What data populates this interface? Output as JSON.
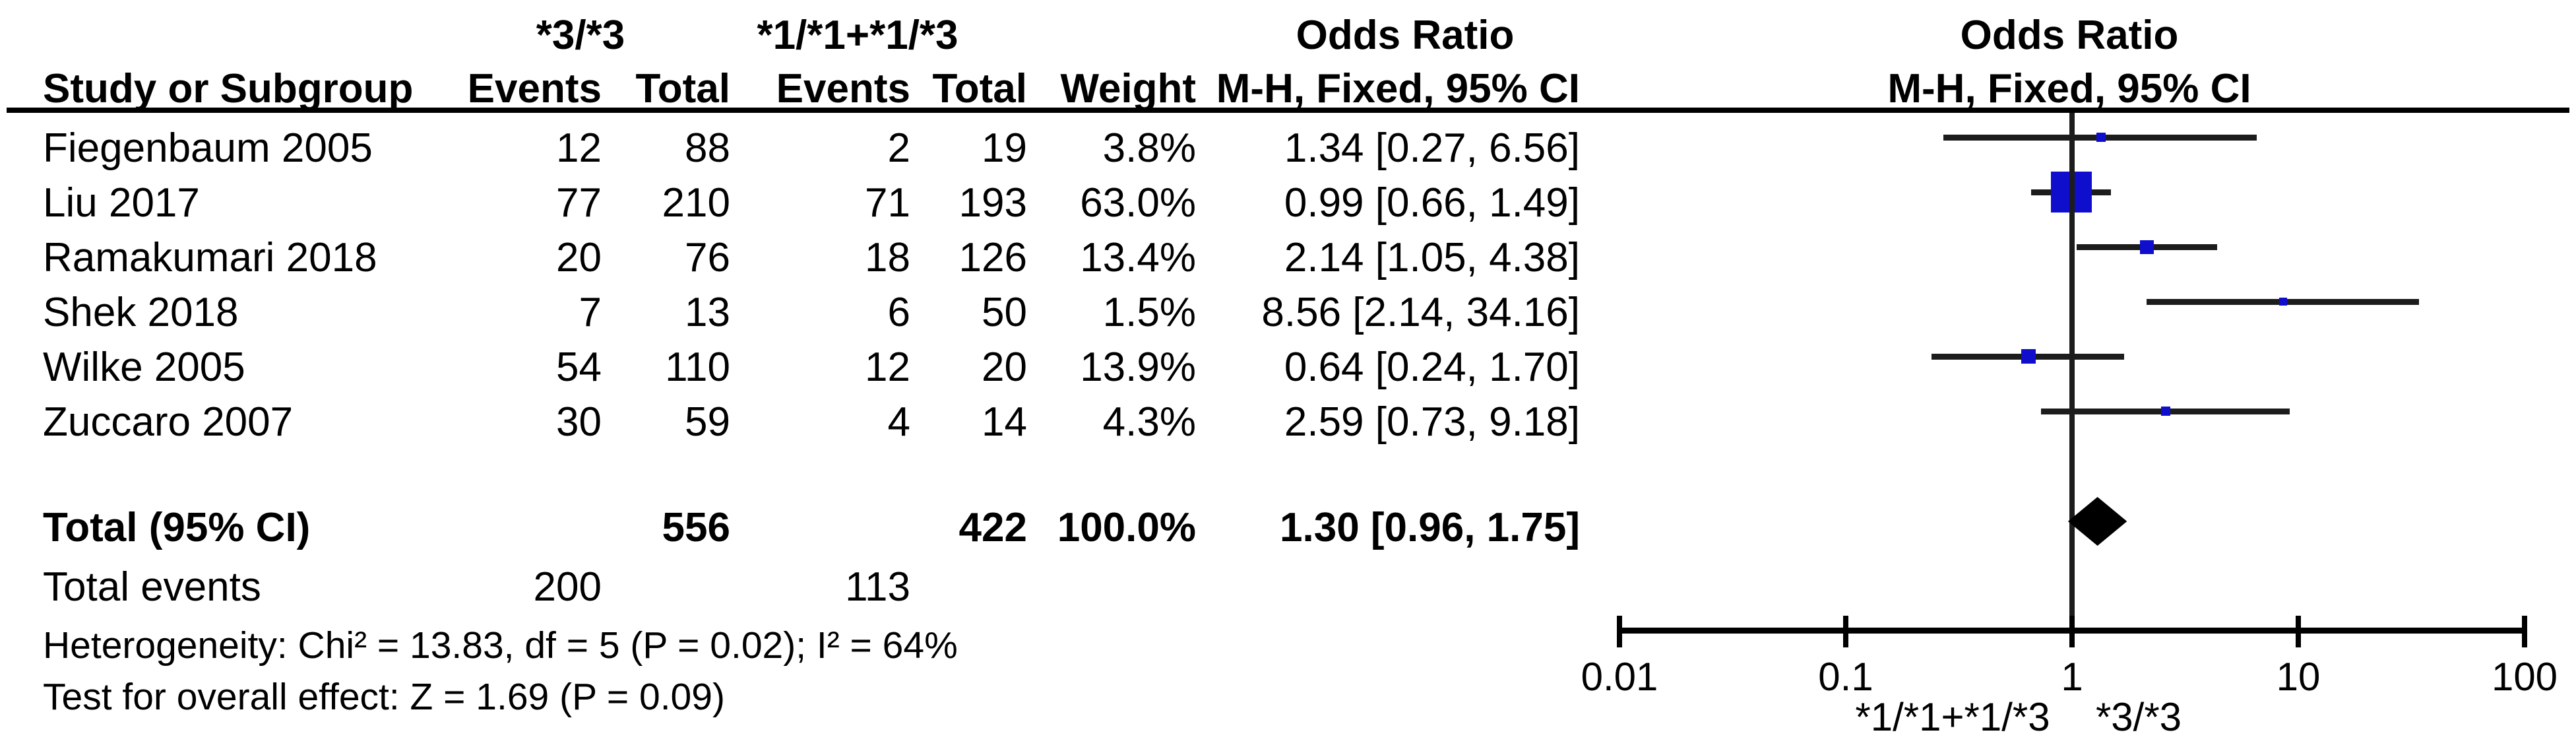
{
  "headers": {
    "group1": "*3/*3",
    "group2": "*1/*1+*1/*3",
    "study": "Study or Subgroup",
    "events": "Events",
    "total": "Total",
    "weight": "Weight",
    "or_line1": "Odds Ratio",
    "or_line2": "M-H, Fixed, 95% CI",
    "plot_line1": "Odds Ratio",
    "plot_line2": "M-H, Fixed, 95% CI"
  },
  "summary": {
    "total_label": "Total (95% CI)",
    "total_exp": "556",
    "total_ctl": "422",
    "weight": "100.0%",
    "or_text": "1.30 [0.96, 1.75]",
    "or": 1.3,
    "ci_low": 0.96,
    "ci_high": 1.75,
    "total_events_label": "Total events",
    "events_exp": "200",
    "events_ctl": "113",
    "heterogeneity": "Heterogeneity: Chi² = 13.83, df = 5 (P = 0.02); I² = 64%",
    "overall_effect": "Test for overall effect: Z = 1.69 (P = 0.09)"
  },
  "chart_data": {
    "type": "scatter",
    "subtype": "forest-plot",
    "effect_measure": "Odds Ratio, M-H, Fixed, 95% CI",
    "x_axis": {
      "scale": "log",
      "range": [
        0.01,
        100
      ],
      "ticks": [
        0.01,
        0.1,
        1,
        10,
        100
      ],
      "tick_labels": [
        "0.01",
        "0.1",
        "1",
        "10",
        "100"
      ]
    },
    "favours_left_label": "*1/*1+*1/*3",
    "favours_right_label": "*3/*3",
    "marker_color": "#0E0ECC",
    "diamond_color": "#000000",
    "studies": [
      {
        "name": "Fiegenbaum 2005",
        "events_exp": "12",
        "total_exp": "88",
        "events_ctl": "2",
        "total_ctl": "19",
        "weight": "3.8%",
        "weight_pct": 3.8,
        "or_text": "1.34 [0.27, 6.56]",
        "or": 1.34,
        "ci_low": 0.27,
        "ci_high": 6.56
      },
      {
        "name": "Liu 2017",
        "events_exp": "77",
        "total_exp": "210",
        "events_ctl": "71",
        "total_ctl": "193",
        "weight": "63.0%",
        "weight_pct": 63.0,
        "or_text": "0.99 [0.66, 1.49]",
        "or": 0.99,
        "ci_low": 0.66,
        "ci_high": 1.49
      },
      {
        "name": "Ramakumari 2018",
        "events_exp": "20",
        "total_exp": "76",
        "events_ctl": "18",
        "total_ctl": "126",
        "weight": "13.4%",
        "weight_pct": 13.4,
        "or_text": "2.14 [1.05, 4.38]",
        "or": 2.14,
        "ci_low": 1.05,
        "ci_high": 4.38
      },
      {
        "name": "Shek 2018",
        "events_exp": "7",
        "total_exp": "13",
        "events_ctl": "6",
        "total_ctl": "50",
        "weight": "1.5%",
        "weight_pct": 1.5,
        "or_text": "8.56 [2.14, 34.16]",
        "or": 8.56,
        "ci_low": 2.14,
        "ci_high": 34.16
      },
      {
        "name": "Wilke 2005",
        "events_exp": "54",
        "total_exp": "110",
        "events_ctl": "12",
        "total_ctl": "20",
        "weight": "13.9%",
        "weight_pct": 13.9,
        "or_text": "0.64 [0.24, 1.70]",
        "or": 0.64,
        "ci_low": 0.24,
        "ci_high": 1.7
      },
      {
        "name": "Zuccaro 2007",
        "events_exp": "30",
        "total_exp": "59",
        "events_ctl": "4",
        "total_ctl": "14",
        "weight": "4.3%",
        "weight_pct": 4.3,
        "or_text": "2.59 [0.73, 9.18]",
        "or": 2.59,
        "ci_low": 0.73,
        "ci_high": 9.18
      }
    ],
    "total": {
      "label": "Total (95% CI)",
      "or": 1.3,
      "ci_low": 0.96,
      "ci_high": 1.75
    }
  }
}
